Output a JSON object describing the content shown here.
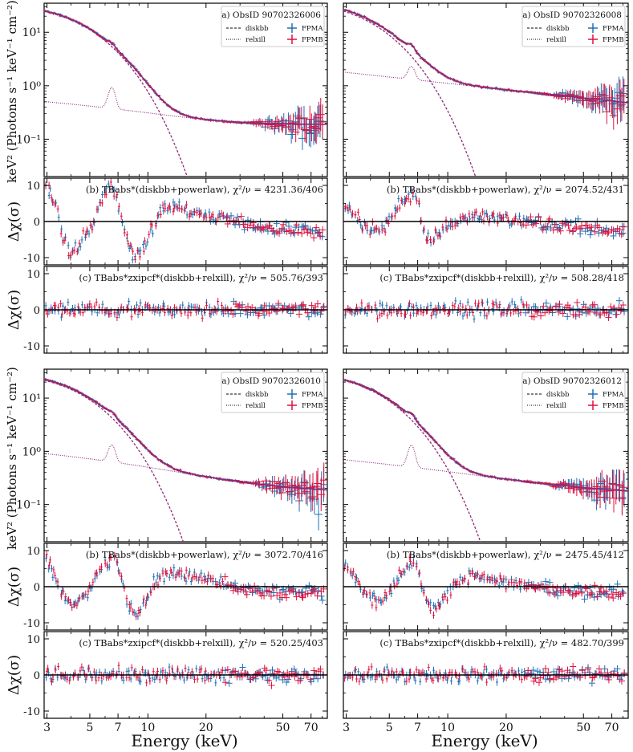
{
  "figure": {
    "xlabel": "Energy (keV)",
    "spec_ylabel": "keV² (Photons s⁻¹ keV⁻¹ cm⁻²)",
    "resid_ylabel": "Δχ(σ)",
    "legend": {
      "diskbb": "diskbb",
      "relxill": "relxill",
      "fpma": "FPMA",
      "fpmb": "FPMB"
    }
  },
  "colors": {
    "fpma": "#1f6fb4",
    "fpmb": "#e0103c",
    "model": "#8b2a78",
    "zero": "#000000"
  },
  "chart_data": [
    {
      "type": "scatter",
      "panel": "a",
      "obsid": "a) ObsID 90702326006",
      "x_scale": "log",
      "y_scale": "log",
      "xlim": [
        2.9,
        85
      ],
      "ylim": [
        0.02,
        35
      ],
      "x_ticks": [
        3,
        5,
        7,
        10,
        20,
        50,
        70
      ],
      "y_tick_labels": [
        "10⁻¹",
        "10⁰",
        "10¹"
      ],
      "params": {
        "A": 24,
        "T": 1.4,
        "P": 0.19,
        "L": 0.55,
        "C": 0.4,
        "slope": 0.0
      },
      "series": [
        {
          "name": "FPMA"
        },
        {
          "name": "FPMB"
        }
      ],
      "lines": [
        "diskbb",
        "relxill"
      ]
    },
    {
      "type": "scatter",
      "panel": "b",
      "label": "(b) TBabs*(diskbb+powerlaw), χ²/ν = 4231.36/406",
      "x_scale": "log",
      "xlim": [
        2.9,
        85
      ],
      "ylim": [
        -12,
        12
      ],
      "y_ticks": [
        -10,
        0,
        10
      ],
      "points": [
        [
          3.0,
          10.2
        ],
        [
          3.2,
          6.0
        ],
        [
          3.4,
          3.5
        ],
        [
          3.6,
          -4.5
        ],
        [
          3.8,
          -6.8
        ],
        [
          4.0,
          -8.9
        ],
        [
          4.3,
          -7.5
        ],
        [
          4.6,
          -5.2
        ],
        [
          5.0,
          -2.0
        ],
        [
          5.4,
          2.0
        ],
        [
          5.8,
          6.5
        ],
        [
          6.2,
          8.5
        ],
        [
          6.5,
          9.5
        ],
        [
          6.8,
          7.5
        ],
        [
          7.2,
          3.0
        ],
        [
          7.6,
          -2.5
        ],
        [
          8.0,
          -7.0
        ],
        [
          8.5,
          -10.0
        ],
        [
          9.0,
          -9.0
        ],
        [
          9.5,
          -6.5
        ],
        [
          10.2,
          -3.0
        ],
        [
          11.0,
          0.5
        ],
        [
          12.0,
          3.0
        ],
        [
          13.5,
          3.8
        ],
        [
          15.0,
          3.3
        ],
        [
          17.0,
          2.5
        ],
        [
          20.0,
          1.5
        ],
        [
          24.0,
          1.0
        ],
        [
          28.0,
          0.2
        ],
        [
          33.0,
          -0.8
        ],
        [
          40.0,
          -1.8
        ],
        [
          50.0,
          -2.5
        ],
        [
          60.0,
          -2.0
        ],
        [
          70.0,
          -2.2
        ],
        [
          80.0,
          -3.0
        ]
      ]
    },
    {
      "type": "scatter",
      "panel": "c",
      "label": "(c) TBabs*zxipcf*(diskbb+relxill), χ²/ν = 505.76/393",
      "x_scale": "log",
      "xlim": [
        2.9,
        85
      ],
      "ylim": [
        -12,
        12
      ],
      "y_ticks": [
        -10,
        0,
        10
      ],
      "points": [
        [
          3.0,
          0.0
        ],
        [
          80.0,
          0.0
        ]
      ]
    },
    {
      "type": "scatter",
      "panel": "a",
      "obsid": "a) ObsID 90702326008",
      "x_scale": "log",
      "y_scale": "log",
      "xlim": [
        2.9,
        85
      ],
      "ylim": [
        0.02,
        35
      ],
      "x_ticks": [
        3,
        5,
        7,
        10,
        20,
        50,
        70
      ],
      "params": {
        "A": 24,
        "T": 1.2,
        "P": 0.93,
        "L": 1.0,
        "C": 0.08,
        "slope": -0.38
      },
      "series": [
        {
          "name": "FPMA"
        },
        {
          "name": "FPMB"
        }
      ],
      "lines": [
        "diskbb",
        "relxill"
      ]
    },
    {
      "type": "scatter",
      "panel": "b",
      "label": "(b) TBabs*(diskbb+powerlaw), χ²/ν = 2074.52/431",
      "x_scale": "log",
      "xlim": [
        2.9,
        85
      ],
      "ylim": [
        -12,
        12
      ],
      "y_ticks": [
        -10,
        0,
        10
      ],
      "points": [
        [
          3.0,
          4.5
        ],
        [
          3.2,
          3.0
        ],
        [
          3.4,
          1.0
        ],
        [
          3.6,
          -1.0
        ],
        [
          3.9,
          -2.5
        ],
        [
          4.2,
          -3.0
        ],
        [
          4.6,
          -1.5
        ],
        [
          5.0,
          0.5
        ],
        [
          5.4,
          3.0
        ],
        [
          5.8,
          5.0
        ],
        [
          6.2,
          6.5
        ],
        [
          6.6,
          8.0
        ],
        [
          7.0,
          6.0
        ],
        [
          7.4,
          0.0
        ],
        [
          7.8,
          -4.5
        ],
        [
          8.2,
          -5.0
        ],
        [
          8.8,
          -3.5
        ],
        [
          9.5,
          -2.0
        ],
        [
          10.5,
          -0.5
        ],
        [
          12.0,
          1.0
        ],
        [
          14.0,
          1.5
        ],
        [
          17.0,
          1.2
        ],
        [
          21.0,
          0.5
        ],
        [
          26.0,
          0.0
        ],
        [
          32.0,
          -0.8
        ],
        [
          40.0,
          -1.5
        ],
        [
          50.0,
          -1.5
        ],
        [
          60.0,
          -2.0
        ],
        [
          70.0,
          -2.5
        ],
        [
          80.0,
          -2.5
        ]
      ]
    },
    {
      "type": "scatter",
      "panel": "c",
      "label": "(c) TBabs*zxipcf*(diskbb+relxill), χ²/ν = 508.28/418",
      "x_scale": "log",
      "xlim": [
        2.9,
        85
      ],
      "ylim": [
        -12,
        12
      ],
      "y_ticks": [
        -10,
        0,
        10
      ],
      "points": [
        [
          3.0,
          0.0
        ],
        [
          80.0,
          0.0
        ]
      ]
    },
    {
      "type": "scatter",
      "panel": "a",
      "obsid": "a) ObsID 90702326010",
      "x_scale": "log",
      "y_scale": "log",
      "xlim": [
        2.9,
        85
      ],
      "ylim": [
        0.02,
        35
      ],
      "x_ticks": [
        3,
        5,
        7,
        10,
        20,
        50,
        70
      ],
      "params": {
        "A": 21,
        "T": 1.35,
        "P": 0.29,
        "L": 0.7,
        "C": 0.6,
        "slope": -0.25
      },
      "series": [
        {
          "name": "FPMA"
        },
        {
          "name": "FPMB"
        }
      ],
      "lines": [
        "diskbb",
        "relxill"
      ]
    },
    {
      "type": "scatter",
      "panel": "b",
      "label": "(b) TBabs*(diskbb+powerlaw), χ²/ν = 3072.70/416",
      "x_scale": "log",
      "xlim": [
        2.9,
        85
      ],
      "ylim": [
        -12,
        12
      ],
      "y_ticks": [
        -10,
        0,
        10
      ],
      "points": [
        [
          3.0,
          8.0
        ],
        [
          3.2,
          4.5
        ],
        [
          3.4,
          1.0
        ],
        [
          3.6,
          -2.5
        ],
        [
          3.9,
          -4.5
        ],
        [
          4.2,
          -5.0
        ],
        [
          4.6,
          -3.0
        ],
        [
          5.0,
          -0.5
        ],
        [
          5.4,
          3.0
        ],
        [
          5.8,
          5.5
        ],
        [
          6.2,
          7.0
        ],
        [
          6.6,
          8.0
        ],
        [
          7.0,
          6.0
        ],
        [
          7.4,
          1.0
        ],
        [
          7.8,
          -4.0
        ],
        [
          8.3,
          -7.0
        ],
        [
          8.8,
          -7.5
        ],
        [
          9.4,
          -5.5
        ],
        [
          10.2,
          -2.0
        ],
        [
          11.2,
          2.0
        ],
        [
          12.5,
          3.5
        ],
        [
          14.5,
          3.5
        ],
        [
          17.0,
          2.8
        ],
        [
          20.0,
          2.0
        ],
        [
          24.0,
          1.0
        ],
        [
          29.0,
          0.0
        ],
        [
          35.0,
          -1.0
        ],
        [
          42.0,
          -1.5
        ],
        [
          52.0,
          -1.5
        ],
        [
          62.0,
          -2.0
        ],
        [
          72.0,
          -1.5
        ],
        [
          80.0,
          -2.0
        ]
      ]
    },
    {
      "type": "scatter",
      "panel": "c",
      "label": "(c) TBabs*zxipcf*(diskbb+relxill), χ²/ν = 520.25/403",
      "x_scale": "log",
      "xlim": [
        2.9,
        85
      ],
      "ylim": [
        -12,
        12
      ],
      "y_ticks": [
        -10,
        0,
        10
      ],
      "points": [
        [
          3.0,
          0.0
        ],
        [
          80.0,
          0.0
        ]
      ]
    },
    {
      "type": "scatter",
      "panel": "a",
      "obsid": "a) ObsID 90702326012",
      "x_scale": "log",
      "y_scale": "log",
      "xlim": [
        2.9,
        85
      ],
      "ylim": [
        0.02,
        35
      ],
      "x_ticks": [
        3,
        5,
        7,
        10,
        20,
        50,
        70
      ],
      "params": {
        "A": 21,
        "T": 1.3,
        "P": 0.29,
        "L": 0.8,
        "C": 0.3,
        "slope": -0.28
      },
      "series": [
        {
          "name": "FPMA"
        },
        {
          "name": "FPMB"
        }
      ],
      "lines": [
        "diskbb",
        "relxill"
      ]
    },
    {
      "type": "scatter",
      "panel": "b",
      "label": "(b) TBabs*(diskbb+powerlaw), χ²/ν = 2475.45/412",
      "x_scale": "log",
      "xlim": [
        2.9,
        85
      ],
      "ylim": [
        -12,
        12
      ],
      "y_ticks": [
        -10,
        0,
        10
      ],
      "points": [
        [
          3.0,
          6.0
        ],
        [
          3.2,
          4.0
        ],
        [
          3.4,
          1.5
        ],
        [
          3.6,
          -1.0
        ],
        [
          3.9,
          -3.0
        ],
        [
          4.2,
          -4.0
        ],
        [
          4.6,
          -3.0
        ],
        [
          5.0,
          -1.0
        ],
        [
          5.4,
          2.0
        ],
        [
          5.8,
          4.5
        ],
        [
          6.2,
          6.0
        ],
        [
          6.6,
          7.5
        ],
        [
          7.0,
          5.0
        ],
        [
          7.4,
          0.0
        ],
        [
          7.8,
          -4.0
        ],
        [
          8.3,
          -6.0
        ],
        [
          8.8,
          -6.0
        ],
        [
          9.4,
          -4.0
        ],
        [
          10.2,
          -1.5
        ],
        [
          11.2,
          1.0
        ],
        [
          12.5,
          2.5
        ],
        [
          14.5,
          2.5
        ],
        [
          17.0,
          2.0
        ],
        [
          20.0,
          1.5
        ],
        [
          24.0,
          0.8
        ],
        [
          29.0,
          0.0
        ],
        [
          35.0,
          -1.0
        ],
        [
          42.0,
          -1.5
        ],
        [
          52.0,
          -1.5
        ],
        [
          62.0,
          -1.5
        ],
        [
          72.0,
          -1.5
        ],
        [
          80.0,
          -2.0
        ]
      ]
    },
    {
      "type": "scatter",
      "panel": "c",
      "label": "(c) TBabs*zxipcf*(diskbb+relxill), χ²/ν = 482.70/399",
      "x_scale": "log",
      "xlim": [
        2.9,
        85
      ],
      "ylim": [
        -12,
        12
      ],
      "y_ticks": [
        -10,
        0,
        10
      ],
      "points": [
        [
          3.0,
          0.0
        ],
        [
          80.0,
          0.0
        ]
      ]
    }
  ]
}
